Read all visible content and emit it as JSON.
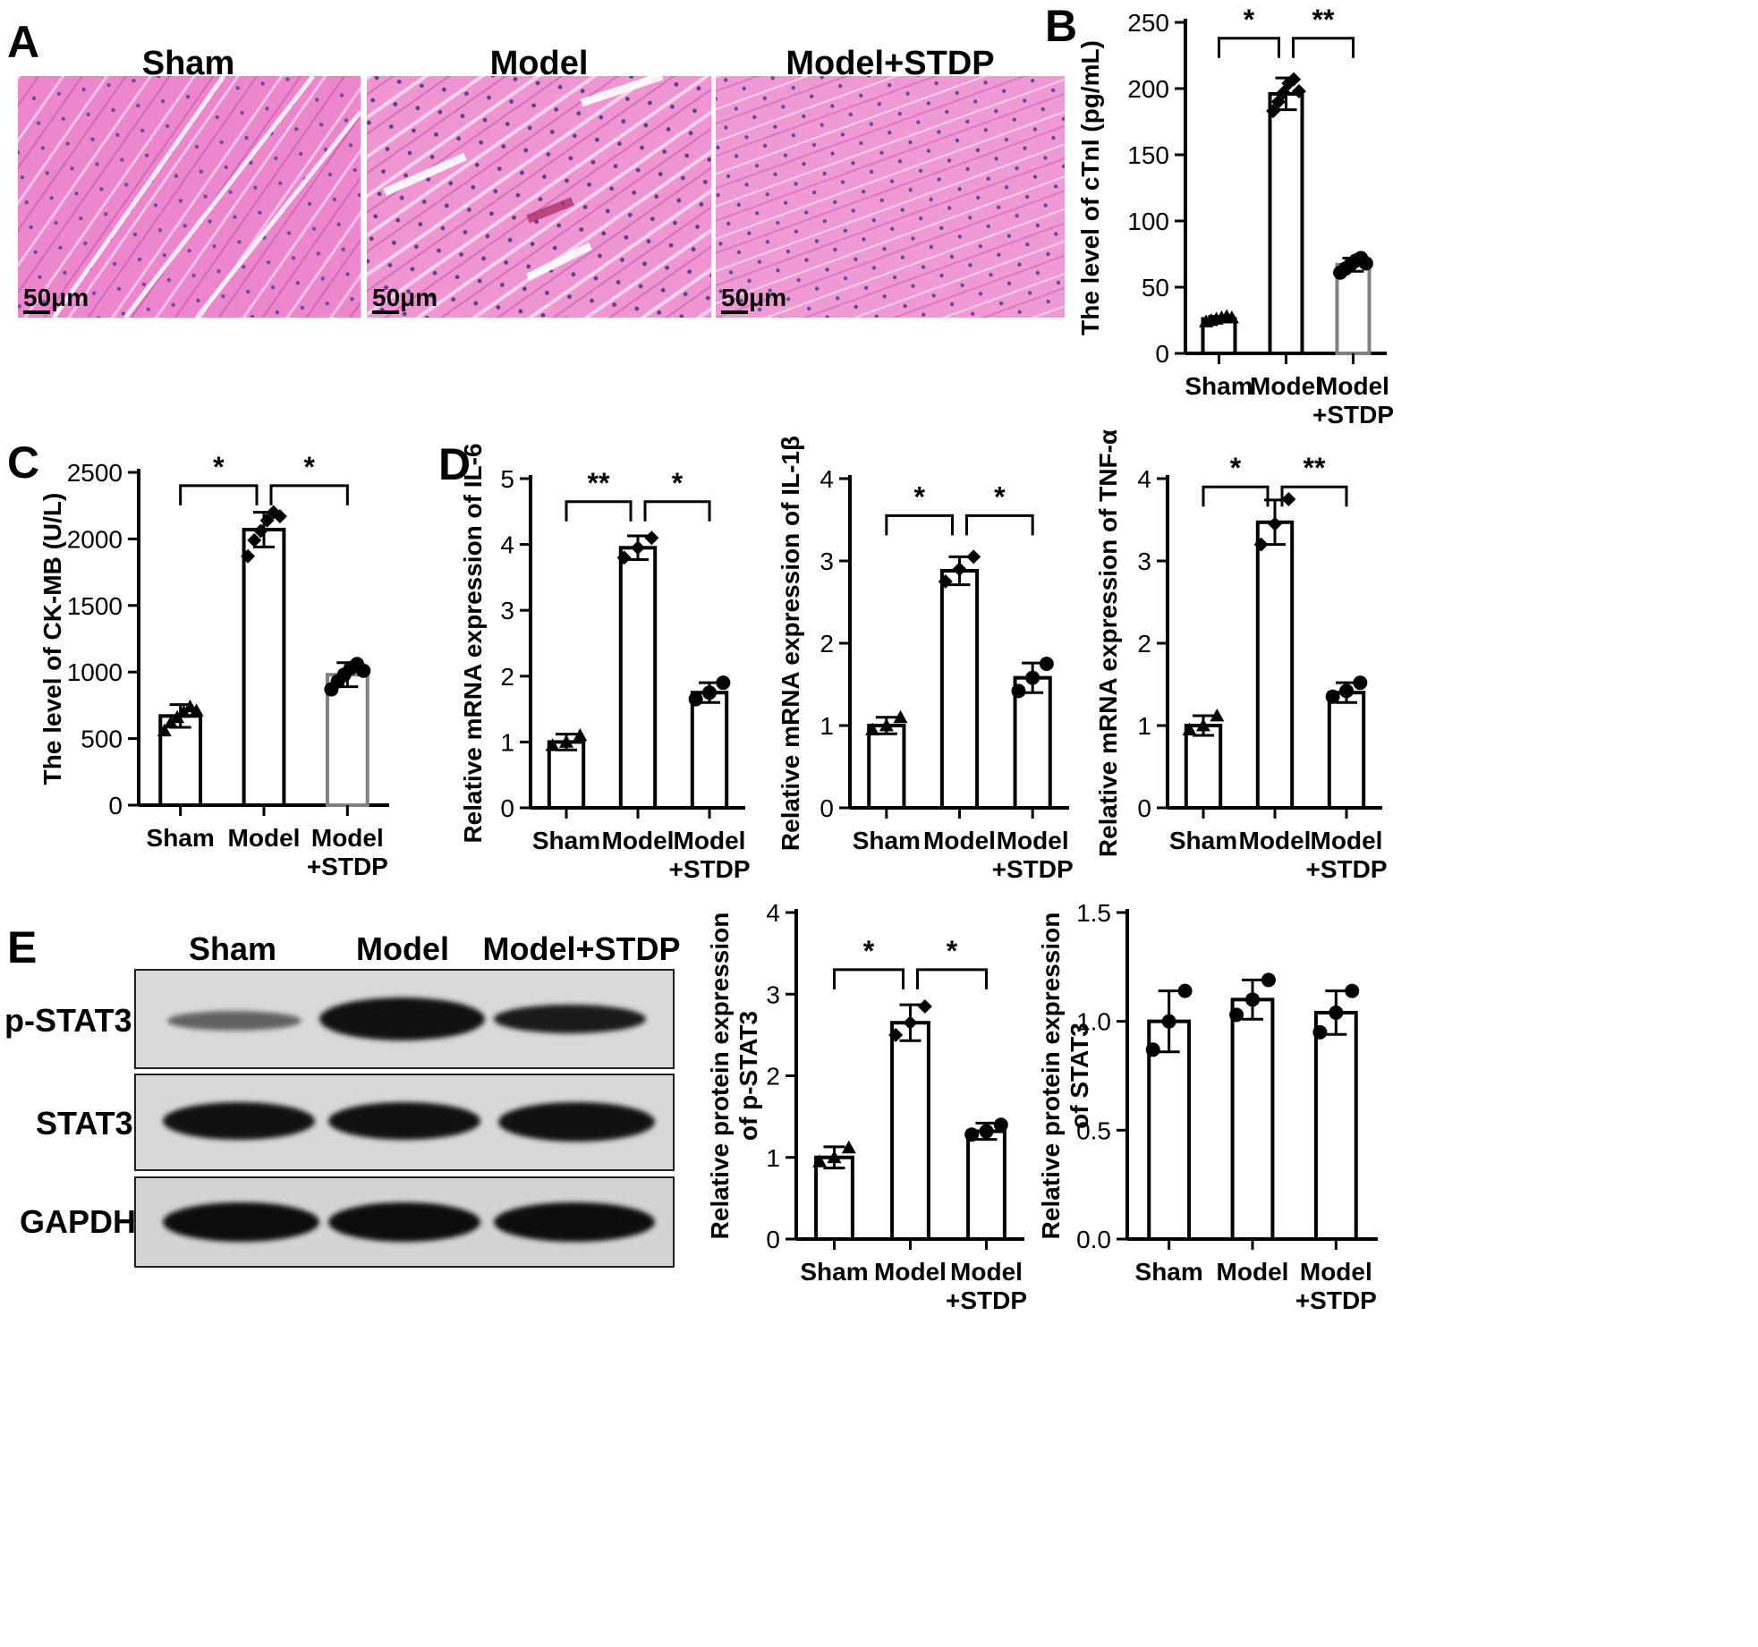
{
  "panels": {
    "A": {
      "letter": "A",
      "titles": [
        "Sham",
        "Model",
        "Model+STDP"
      ],
      "scale_labels": [
        "50μm",
        "50μm",
        "50μm"
      ]
    },
    "E": {
      "letter": "E",
      "lanes": [
        "Sham",
        "Model",
        "Model+STDP"
      ],
      "rows": [
        "p-STAT3",
        "STAT3",
        "GAPDH"
      ]
    }
  },
  "colors": {
    "bar_edge": "#000000",
    "stdp_bar_edge": "#808080",
    "he_pink": "#e87fc8",
    "band": "#111111"
  },
  "chart_data": [
    {
      "id": "B",
      "letter": "B",
      "type": "bar",
      "categories": [
        "Sham",
        "Model",
        "Model\n+STDP"
      ],
      "values": [
        26,
        196,
        67
      ],
      "errors": [
        2,
        12,
        5
      ],
      "ylabel": "The level of cTnI (pg/mL)",
      "ylim": [
        0,
        250
      ],
      "yticks": [
        0,
        50,
        100,
        150,
        200,
        250
      ],
      "points": [
        [
          24,
          25,
          26,
          27,
          28,
          27
        ],
        [
          183,
          190,
          197,
          204,
          207,
          198
        ],
        [
          61,
          64,
          67,
          70,
          72,
          68
        ]
      ],
      "markers": [
        "triangle",
        "diamond",
        "circle"
      ],
      "significance": [
        {
          "from": 0,
          "to": 1,
          "label": "*"
        },
        {
          "from": 1,
          "to": 2,
          "label": "**"
        }
      ],
      "sig_levels": [
        238,
        238
      ]
    },
    {
      "id": "C",
      "letter": "C",
      "type": "bar",
      "categories": [
        "Sham",
        "Model",
        "Model\n+STDP"
      ],
      "values": [
        670,
        2070,
        980
      ],
      "errors": [
        85,
        130,
        90
      ],
      "ylabel": "The level of CK-MB (U/L)",
      "ylim": [
        0,
        2500
      ],
      "yticks": [
        0,
        500,
        1000,
        1500,
        2000,
        2500
      ],
      "points": [
        [
          560,
          620,
          660,
          700,
          740,
          710
        ],
        [
          1870,
          1990,
          2060,
          2140,
          2200,
          2170
        ],
        [
          870,
          930,
          980,
          1030,
          1060,
          1010
        ]
      ],
      "markers": [
        "triangle",
        "diamond",
        "circle"
      ],
      "significance": [
        {
          "from": 0,
          "to": 1,
          "label": "*"
        },
        {
          "from": 1,
          "to": 2,
          "label": "*"
        }
      ],
      "sig_levels": [
        2400,
        2400
      ]
    },
    {
      "id": "D1",
      "letter": "D",
      "type": "bar",
      "categories": [
        "Sham",
        "Model",
        "Model\n+STDP"
      ],
      "values": [
        1.0,
        3.95,
        1.75
      ],
      "errors": [
        0.12,
        0.18,
        0.15
      ],
      "ylabel": "Relative mRNA expression of IL-6",
      "ylim": [
        0,
        5
      ],
      "yticks": [
        0,
        1,
        2,
        3,
        4,
        5
      ],
      "points": [
        [
          0.95,
          1.0,
          1.1
        ],
        [
          3.8,
          3.95,
          4.1
        ],
        [
          1.65,
          1.75,
          1.9
        ]
      ],
      "markers": [
        "triangle",
        "diamond",
        "circle"
      ],
      "significance": [
        {
          "from": 0,
          "to": 1,
          "label": "**"
        },
        {
          "from": 1,
          "to": 2,
          "label": "*"
        }
      ],
      "sig_levels": [
        4.65,
        4.65
      ]
    },
    {
      "id": "D2",
      "type": "bar",
      "categories": [
        "Sham",
        "Model",
        "Model\n+STDP"
      ],
      "values": [
        1.0,
        2.88,
        1.58
      ],
      "errors": [
        0.1,
        0.17,
        0.18
      ],
      "ylabel": "Relative mRNA expression of IL-1β",
      "ylim": [
        0,
        4
      ],
      "yticks": [
        0,
        1,
        2,
        3,
        4
      ],
      "points": [
        [
          0.95,
          1.0,
          1.1
        ],
        [
          2.75,
          2.9,
          3.05
        ],
        [
          1.42,
          1.58,
          1.75
        ]
      ],
      "markers": [
        "triangle",
        "diamond",
        "circle"
      ],
      "significance": [
        {
          "from": 0,
          "to": 1,
          "label": "*"
        },
        {
          "from": 1,
          "to": 2,
          "label": "*"
        }
      ],
      "sig_levels": [
        3.55,
        3.55
      ]
    },
    {
      "id": "D3",
      "type": "bar",
      "categories": [
        "Sham",
        "Model",
        "Model\n+STDP"
      ],
      "values": [
        1.0,
        3.47,
        1.4
      ],
      "errors": [
        0.12,
        0.27,
        0.12
      ],
      "ylabel": "Relative mRNA expression of TNF-α",
      "ylim": [
        0,
        4
      ],
      "yticks": [
        0,
        1,
        2,
        3,
        4
      ],
      "points": [
        [
          0.95,
          1.0,
          1.12
        ],
        [
          3.2,
          3.45,
          3.75
        ],
        [
          1.35,
          1.42,
          1.52
        ]
      ],
      "markers": [
        "triangle",
        "diamond",
        "circle"
      ],
      "significance": [
        {
          "from": 0,
          "to": 1,
          "label": "*"
        },
        {
          "from": 1,
          "to": 2,
          "label": "**"
        }
      ],
      "sig_levels": [
        3.9,
        3.9
      ]
    },
    {
      "id": "E1",
      "type": "bar",
      "categories": [
        "Sham",
        "Model",
        "Model\n+STDP"
      ],
      "values": [
        1.0,
        2.65,
        1.32
      ],
      "errors": [
        0.13,
        0.22,
        0.1
      ],
      "ylabel": "Relative protein expression\nof p-STAT3",
      "ylim": [
        0,
        4
      ],
      "yticks": [
        0,
        1,
        2,
        3,
        4
      ],
      "points": [
        [
          0.95,
          1.0,
          1.12
        ],
        [
          2.5,
          2.65,
          2.85
        ],
        [
          1.28,
          1.32,
          1.4
        ]
      ],
      "markers": [
        "triangle",
        "diamond",
        "circle"
      ],
      "significance": [
        {
          "from": 0,
          "to": 1,
          "label": "*"
        },
        {
          "from": 1,
          "to": 2,
          "label": "*"
        }
      ],
      "sig_levels": [
        3.3,
        3.3
      ]
    },
    {
      "id": "E2",
      "type": "bar",
      "categories": [
        "Sham",
        "Model",
        "Model\n+STDP"
      ],
      "values": [
        1.0,
        1.1,
        1.04
      ],
      "errors": [
        0.14,
        0.09,
        0.1
      ],
      "ylabel": "Relative protein expression\nof STAT3",
      "ylim": [
        0,
        1.5
      ],
      "yticks": [
        0.0,
        0.5,
        1.0,
        1.5
      ],
      "ytick_labels": [
        "0.0",
        "0.5",
        "1.0",
        "1.5"
      ],
      "points": [
        [
          0.87,
          1.0,
          1.14
        ],
        [
          1.03,
          1.1,
          1.19
        ],
        [
          0.95,
          1.04,
          1.14
        ]
      ],
      "markers": [
        "circle",
        "circle",
        "circle"
      ],
      "significance": [],
      "sig_levels": []
    }
  ]
}
